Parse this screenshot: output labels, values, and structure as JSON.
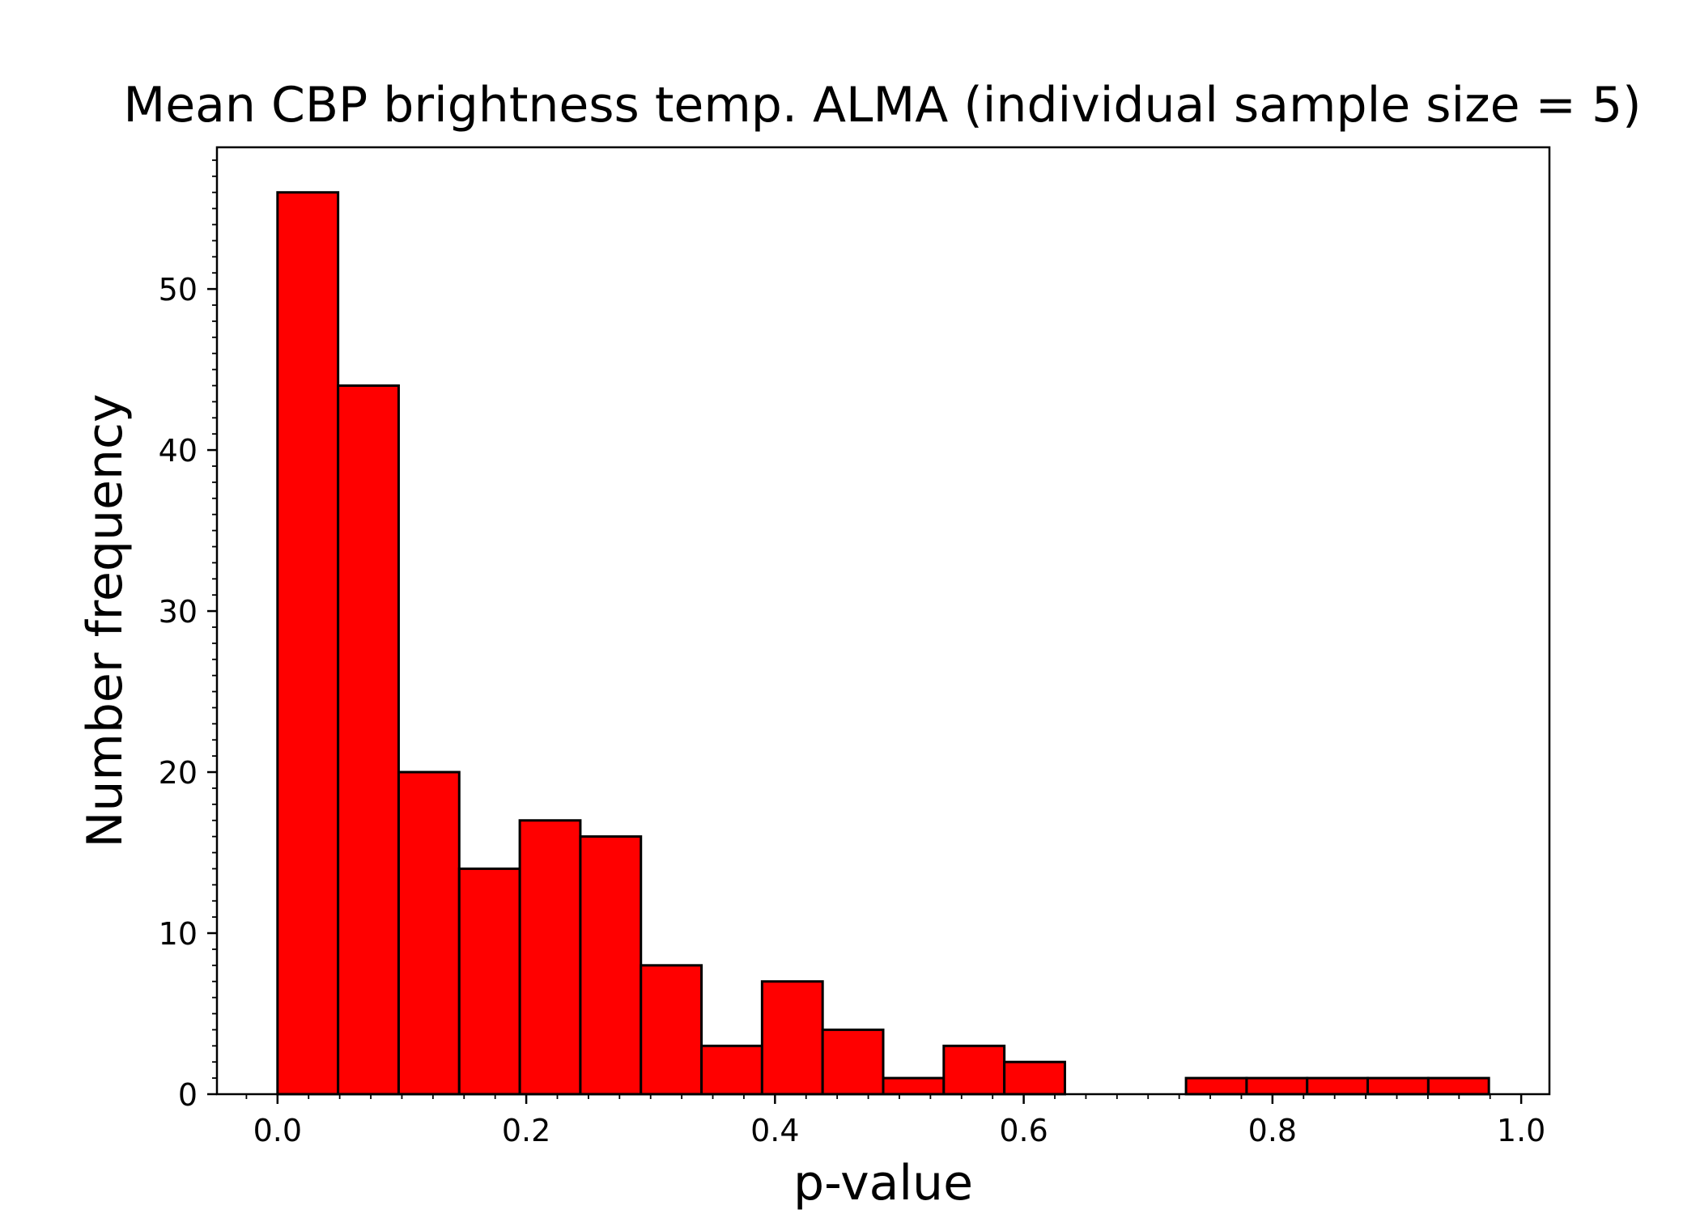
{
  "chart_data": {
    "type": "bar",
    "title": "Mean CBP brightness temp. ALMA (individual sample size = 5)",
    "xlabel": "p-value",
    "ylabel": "Number frequency",
    "bin_edges": [
      0.0,
      0.0487,
      0.0974,
      0.1461,
      0.1948,
      0.2435,
      0.2922,
      0.3409,
      0.3896,
      0.4383,
      0.487,
      0.5357,
      0.5844,
      0.6331,
      0.6818,
      0.7305,
      0.7792,
      0.8279,
      0.8766,
      0.9253,
      0.974
    ],
    "values": [
      56,
      44,
      20,
      14,
      17,
      16,
      8,
      3,
      7,
      4,
      1,
      3,
      2,
      0,
      0,
      1,
      1,
      1,
      1,
      1
    ],
    "xlim": [
      -0.0487,
      1.0227
    ],
    "ylim": [
      0,
      58.8
    ],
    "xticks": [
      0.0,
      0.2,
      0.4,
      0.6,
      0.8,
      1.0
    ],
    "xtick_labels": [
      "0.0",
      "0.2",
      "0.4",
      "0.6",
      "0.8",
      "1.0"
    ],
    "yticks": [
      0,
      10,
      20,
      30,
      40,
      50
    ],
    "ytick_labels": [
      "0",
      "10",
      "20",
      "30",
      "40",
      "50"
    ],
    "x_minor_step": 0.025,
    "y_minor_step": 1,
    "bar_color": "#ff0000",
    "edge_color": "#000000",
    "grid": false,
    "legend": "none"
  }
}
